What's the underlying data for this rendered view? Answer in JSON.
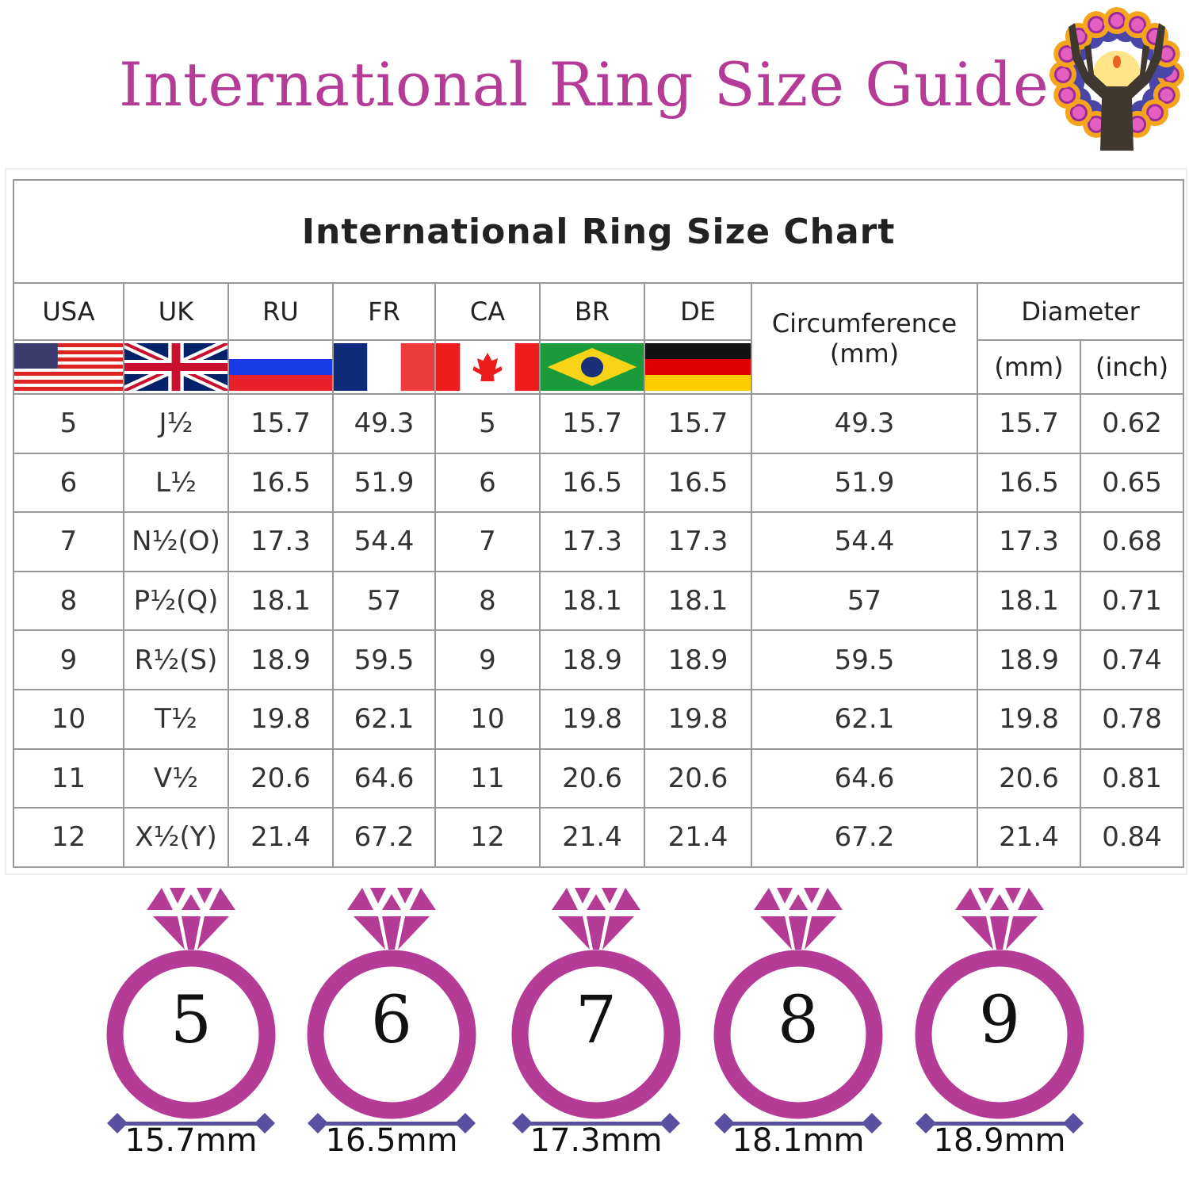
{
  "title": "International Ring Size Guide",
  "chart": {
    "title": "International Ring Size Chart",
    "headers": [
      "USA",
      "UK",
      "RU",
      "FR",
      "CA",
      "BR",
      "DE"
    ],
    "circumference_header": "Circumference (mm)",
    "diameter_header": "Diameter",
    "diameter_sub": [
      "(mm)",
      "(inch)"
    ],
    "flags": [
      "usa-flag",
      "uk-flag",
      "russia-flag",
      "france-flag",
      "canada-flag",
      "brazil-flag",
      "germany-flag"
    ],
    "rows": [
      [
        "5",
        "J½",
        "15.7",
        "49.3",
        "5",
        "15.7",
        "15.7",
        "49.3",
        "15.7",
        "0.62"
      ],
      [
        "6",
        "L½",
        "16.5",
        "51.9",
        "6",
        "16.5",
        "16.5",
        "51.9",
        "16.5",
        "0.65"
      ],
      [
        "7",
        "N½(O)",
        "17.3",
        "54.4",
        "7",
        "17.3",
        "17.3",
        "54.4",
        "17.3",
        "0.68"
      ],
      [
        "8",
        "P½(Q)",
        "18.1",
        "57",
        "8",
        "18.1",
        "18.1",
        "57",
        "18.1",
        "0.71"
      ],
      [
        "9",
        "R½(S)",
        "18.9",
        "59.5",
        "9",
        "18.9",
        "18.9",
        "59.5",
        "18.9",
        "0.74"
      ],
      [
        "10",
        "T½",
        "19.8",
        "62.1",
        "10",
        "19.8",
        "19.8",
        "62.1",
        "19.8",
        "0.78"
      ],
      [
        "11",
        "V½",
        "20.6",
        "64.6",
        "11",
        "20.6",
        "20.6",
        "64.6",
        "20.6",
        "0.81"
      ],
      [
        "12",
        "X½(Y)",
        "21.4",
        "67.2",
        "12",
        "21.4",
        "21.4",
        "67.2",
        "21.4",
        "0.84"
      ]
    ]
  },
  "rings": [
    {
      "size": "5",
      "diameter": "15.7mm"
    },
    {
      "size": "6",
      "diameter": "16.5mm"
    },
    {
      "size": "7",
      "diameter": "17.3mm"
    },
    {
      "size": "8",
      "diameter": "18.1mm"
    },
    {
      "size": "9",
      "diameter": "18.9mm"
    }
  ],
  "colors": {
    "brand": "#b43c96",
    "measure": "#5a50a0"
  }
}
